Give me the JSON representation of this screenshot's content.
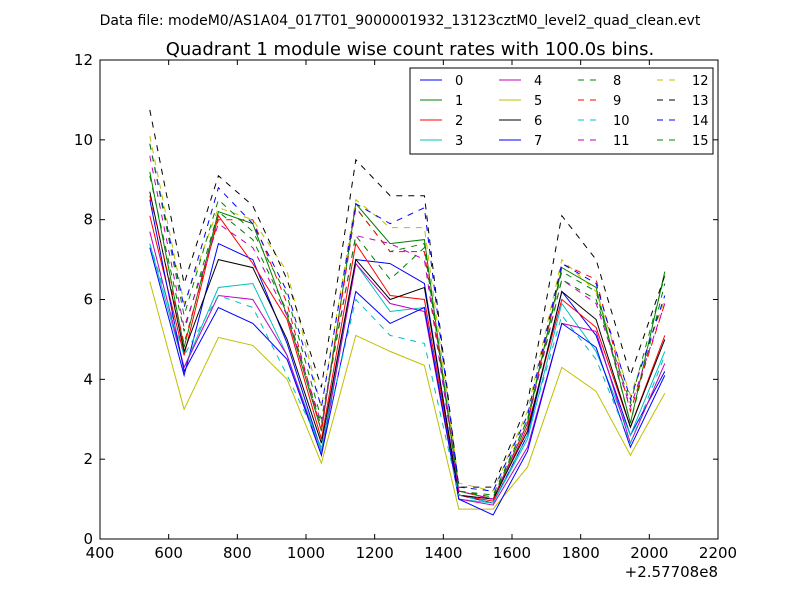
{
  "suptitle": "Data file: modeM0/AS1A04_017T01_9000001932_13123cztM0_level2_quad_clean.evt",
  "chart_data": {
    "type": "line",
    "title": "Quadrant 1 module wise count rates with 100.0s bins.",
    "xlabel": "",
    "ylabel": "",
    "x_offset_label": "+2.57708e8",
    "xlim": [
      400,
      2200
    ],
    "ylim": [
      0,
      12
    ],
    "x_ticks": [
      "400",
      "600",
      "800",
      "1000",
      "1200",
      "1400",
      "1600",
      "1800",
      "2000",
      "2200"
    ],
    "y_ticks": [
      "0",
      "2",
      "4",
      "6",
      "8",
      "10",
      "12"
    ],
    "grid": false,
    "legend": {
      "placement": "top-right",
      "columns": 4
    },
    "x": [
      545,
      645,
      745,
      845,
      945,
      1045,
      1145,
      1245,
      1345,
      1445,
      1545,
      1645,
      1745,
      1845,
      1945,
      2045
    ],
    "series": [
      {
        "name": "0",
        "color": "#0000ff",
        "dash": false,
        "values": [
          7.3,
          4.1,
          7.4,
          7.0,
          4.9,
          2.2,
          7.0,
          6.9,
          6.4,
          1.1,
          0.9,
          2.6,
          6.2,
          5.1,
          2.6,
          4.2
        ]
      },
      {
        "name": "1",
        "color": "#008000",
        "dash": false,
        "values": [
          9.2,
          4.8,
          8.2,
          7.9,
          5.6,
          2.7,
          8.4,
          7.4,
          7.5,
          1.2,
          1.0,
          2.9,
          6.8,
          6.3,
          2.9,
          6.7
        ]
      },
      {
        "name": "2",
        "color": "#ff0000",
        "dash": false,
        "values": [
          8.1,
          4.6,
          8.1,
          6.9,
          5.5,
          2.5,
          7.4,
          6.1,
          6.0,
          1.1,
          0.95,
          2.8,
          6.0,
          5.3,
          2.8,
          5.1
        ]
      },
      {
        "name": "3",
        "color": "#00bfbf",
        "dash": false,
        "values": [
          7.4,
          4.3,
          6.3,
          6.4,
          4.6,
          2.2,
          6.9,
          5.7,
          5.8,
          1.0,
          0.9,
          2.5,
          5.9,
          4.7,
          2.6,
          4.7
        ]
      },
      {
        "name": "4",
        "color": "#bf00bf",
        "dash": false,
        "values": [
          7.7,
          4.3,
          6.1,
          6.0,
          4.6,
          2.1,
          6.9,
          5.9,
          5.7,
          1.0,
          0.85,
          2.3,
          5.4,
          5.2,
          2.4,
          4.4
        ]
      },
      {
        "name": "5",
        "color": "#bfbf00",
        "dash": false,
        "values": [
          6.45,
          3.25,
          5.05,
          4.85,
          4.0,
          1.9,
          5.1,
          4.7,
          4.35,
          0.75,
          0.75,
          1.8,
          4.3,
          3.7,
          2.1,
          3.65
        ]
      },
      {
        "name": "6",
        "color": "#000000",
        "dash": false,
        "values": [
          8.7,
          4.7,
          7.0,
          6.8,
          5.0,
          2.4,
          7.0,
          6.0,
          6.3,
          1.1,
          1.0,
          2.7,
          6.2,
          5.5,
          2.8,
          5.0
        ]
      },
      {
        "name": "7",
        "color": "#0000ff",
        "dash": false,
        "values": [
          8.5,
          4.2,
          5.8,
          5.4,
          4.5,
          2.1,
          6.2,
          5.4,
          5.8,
          1.0,
          0.6,
          2.2,
          5.4,
          4.8,
          2.3,
          4.1
        ]
      },
      {
        "name": "8",
        "color": "#008000",
        "dash": true,
        "values": [
          9.1,
          5.2,
          8.2,
          7.5,
          5.7,
          2.8,
          8.3,
          7.2,
          7.4,
          1.2,
          1.05,
          3.0,
          6.7,
          6.2,
          2.9,
          6.4
        ]
      },
      {
        "name": "9",
        "color": "#ff0000",
        "dash": true,
        "values": [
          8.6,
          4.9,
          8.0,
          8.0,
          5.9,
          2.7,
          8.3,
          7.2,
          7.2,
          1.2,
          1.0,
          2.9,
          6.9,
          6.5,
          3.2,
          5.9
        ]
      },
      {
        "name": "10",
        "color": "#00bfbf",
        "dash": true,
        "values": [
          7.4,
          4.6,
          6.1,
          5.8,
          4.1,
          2.3,
          6.0,
          5.1,
          4.9,
          1.1,
          0.9,
          2.6,
          5.6,
          4.5,
          2.4,
          4.6
        ]
      },
      {
        "name": "11",
        "color": "#bf00bf",
        "dash": true,
        "values": [
          9.6,
          5.3,
          7.9,
          7.3,
          5.6,
          2.9,
          7.6,
          7.4,
          7.0,
          1.2,
          1.0,
          2.9,
          6.5,
          5.9,
          3.3,
          5.9
        ]
      },
      {
        "name": "12",
        "color": "#bfbf00",
        "dash": true,
        "values": [
          10.1,
          5.9,
          8.3,
          8.0,
          6.7,
          3.3,
          8.5,
          7.8,
          7.8,
          1.4,
          1.2,
          3.2,
          7.0,
          6.2,
          3.6,
          6.0
        ]
      },
      {
        "name": "13",
        "color": "#000000",
        "dash": true,
        "values": [
          10.75,
          6.4,
          9.1,
          8.35,
          6.5,
          3.8,
          9.5,
          8.6,
          8.6,
          1.3,
          1.3,
          3.4,
          8.1,
          7.0,
          4.1,
          6.6
        ]
      },
      {
        "name": "14",
        "color": "#0000ff",
        "dash": true,
        "values": [
          9.9,
          5.8,
          8.8,
          7.9,
          6.2,
          3.3,
          8.4,
          7.9,
          8.3,
          1.3,
          1.2,
          3.1,
          6.9,
          6.4,
          3.5,
          6.1
        ]
      },
      {
        "name": "15",
        "color": "#008000",
        "dash": true,
        "values": [
          9.9,
          5.6,
          8.5,
          7.7,
          6.1,
          3.0,
          7.6,
          6.5,
          7.3,
          1.2,
          1.1,
          3.0,
          6.5,
          6.0,
          3.4,
          6.6
        ]
      }
    ]
  }
}
